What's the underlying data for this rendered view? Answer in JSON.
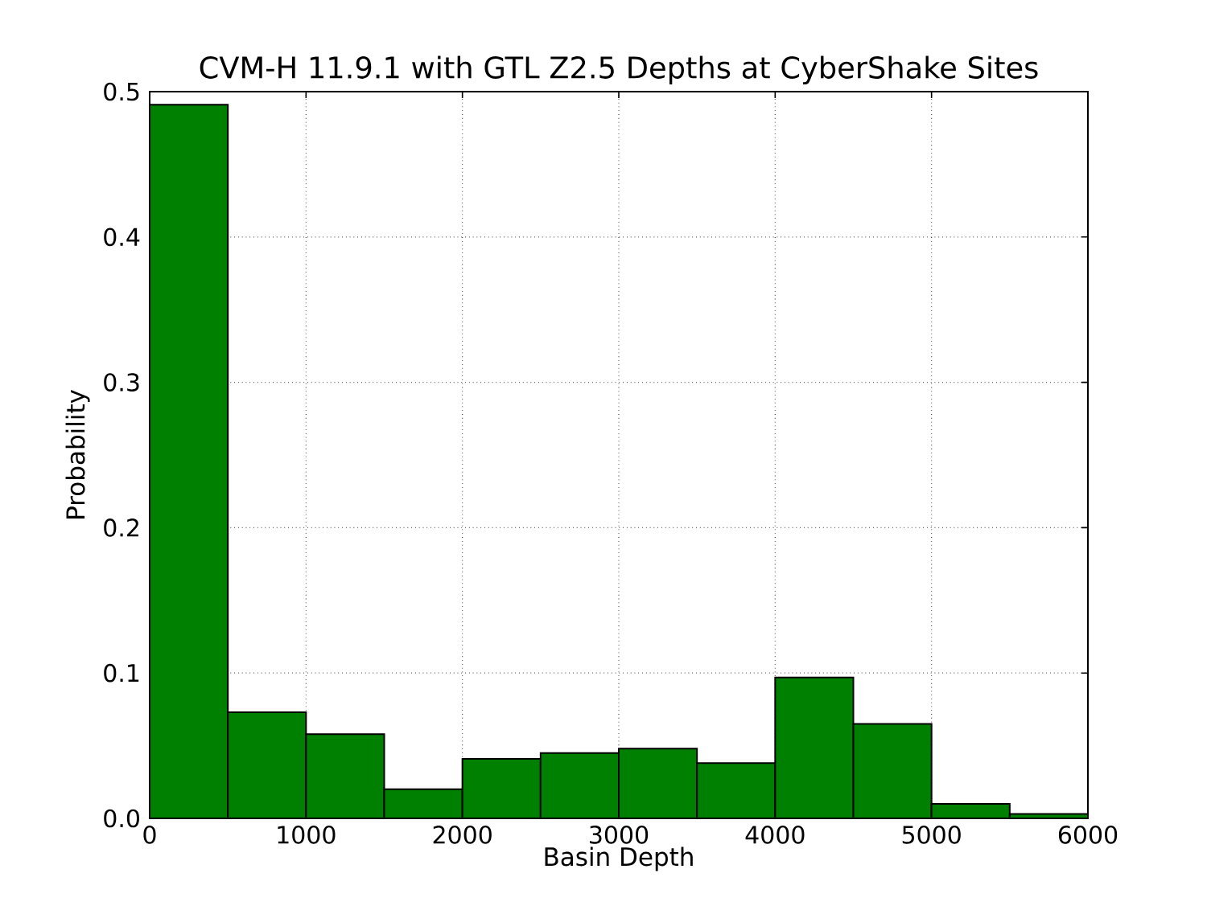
{
  "chart_data": {
    "type": "histogram",
    "title": "CVM-H 11.9.1 with GTL Z2.5 Depths at CyberShake Sites",
    "xlabel": "Basin Depth",
    "ylabel": "Probability",
    "bins": [
      0,
      500,
      1000,
      1500,
      2000,
      2500,
      3000,
      3500,
      4000,
      4500,
      5000,
      5500,
      6000
    ],
    "values": [
      0.491,
      0.073,
      0.058,
      0.02,
      0.041,
      0.045,
      0.048,
      0.038,
      0.097,
      0.065,
      0.01,
      0.003
    ],
    "color": "#008000",
    "xlim": [
      0,
      6000
    ],
    "xticks": [
      0,
      1000,
      2000,
      3000,
      4000,
      5000,
      6000
    ],
    "ylim": [
      0,
      0.5
    ],
    "yticks": [
      {
        "value": 0,
        "label": "0.0"
      },
      0.1,
      0.2,
      0.3,
      0.4,
      0.5
    ],
    "grid": true
  }
}
